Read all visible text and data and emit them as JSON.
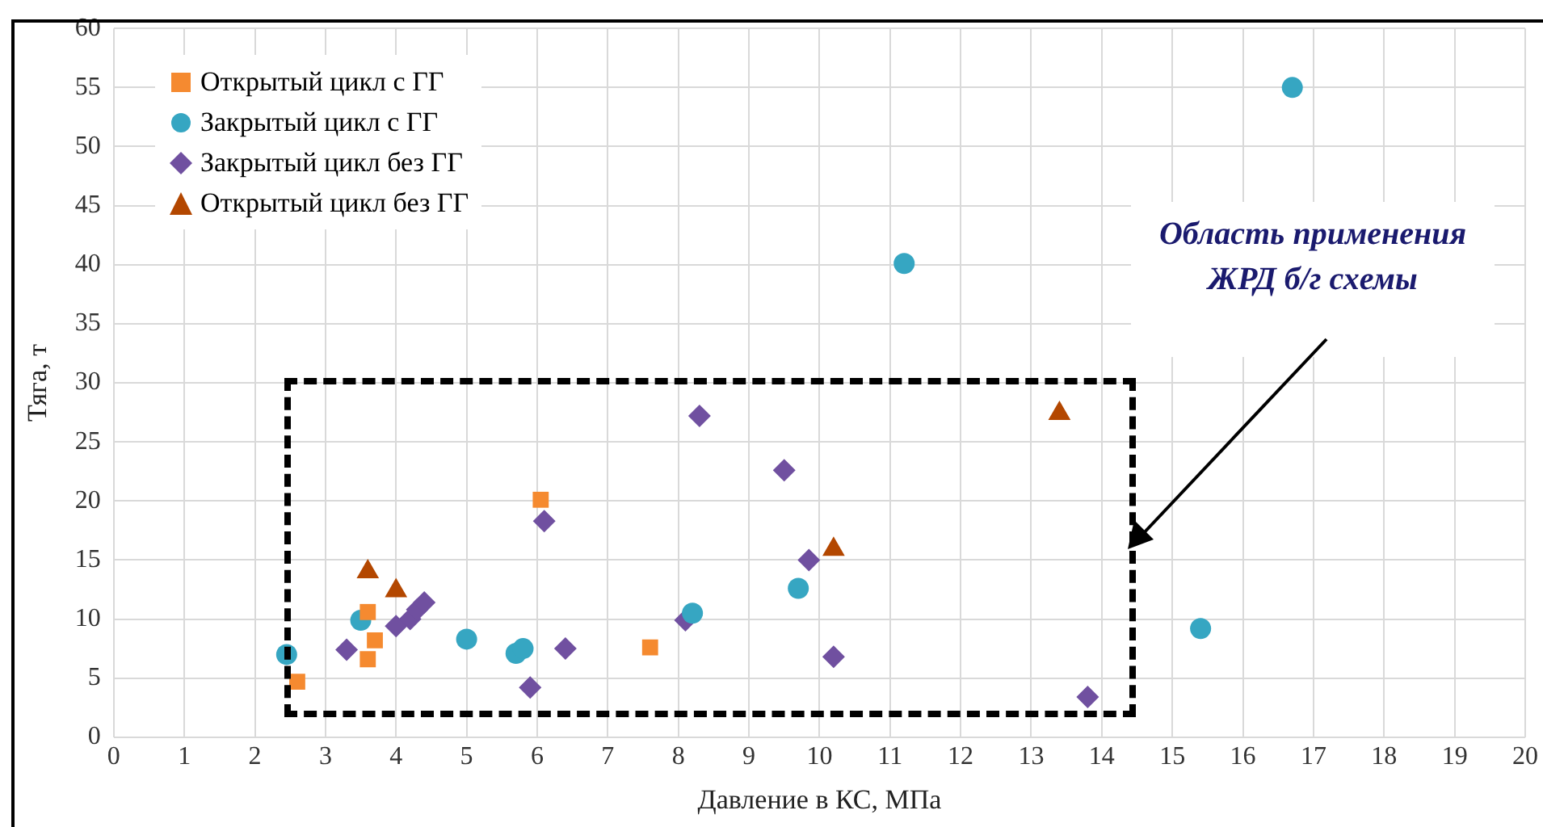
{
  "chart_data": {
    "type": "scatter",
    "xlabel": "Давление в КС, МПа",
    "ylabel": "Тяга, т",
    "xlim": [
      0,
      20
    ],
    "xticks": [
      0,
      1,
      2,
      3,
      4,
      5,
      6,
      7,
      8,
      9,
      10,
      11,
      12,
      13,
      14,
      15,
      16,
      17,
      18,
      19,
      20
    ],
    "ylim": [
      0,
      60
    ],
    "yticks": [
      0,
      5,
      10,
      15,
      20,
      25,
      30,
      35,
      40,
      45,
      50,
      55,
      60
    ],
    "grid": true,
    "legend": "top left",
    "annotations": [
      "Область применения ЖРД б/г схемы"
    ],
    "series": [
      {
        "name": "Открытый цикл с ГГ",
        "color": "#f58a30",
        "marker": "square",
        "x": [
          2.6,
          3.6,
          3.7,
          3.6,
          6.05,
          7.6
        ],
        "values": [
          4.7,
          10.6,
          8.2,
          6.6,
          20.1,
          7.6
        ]
      },
      {
        "name": "Закрытый цикл с ГГ",
        "color": "#36a6c2",
        "marker": "circle",
        "x": [
          2.45,
          3.5,
          5.0,
          5.7,
          5.8,
          8.2,
          9.7,
          11.2,
          15.4,
          16.7
        ],
        "values": [
          7.0,
          9.9,
          8.3,
          7.1,
          7.5,
          10.5,
          12.6,
          40.1,
          9.2,
          55.0
        ]
      },
      {
        "name": "Закрытый цикл без ГГ",
        "color": "#7050a0",
        "marker": "diamond",
        "x": [
          3.3,
          4.0,
          4.2,
          4.3,
          4.4,
          5.9,
          6.1,
          6.4,
          8.1,
          8.3,
          9.5,
          9.85,
          10.2,
          13.8
        ],
        "values": [
          7.4,
          9.4,
          10.0,
          10.8,
          11.4,
          4.2,
          18.3,
          7.5,
          9.9,
          27.2,
          22.6,
          15.0,
          6.8,
          3.4
        ]
      },
      {
        "name": "Открытый цикл без ГГ",
        "color": "#b34700",
        "marker": "triangle",
        "x": [
          3.6,
          4.0,
          10.2,
          13.4
        ],
        "values": [
          14.0,
          12.4,
          15.9,
          27.4
        ]
      }
    ]
  }
}
